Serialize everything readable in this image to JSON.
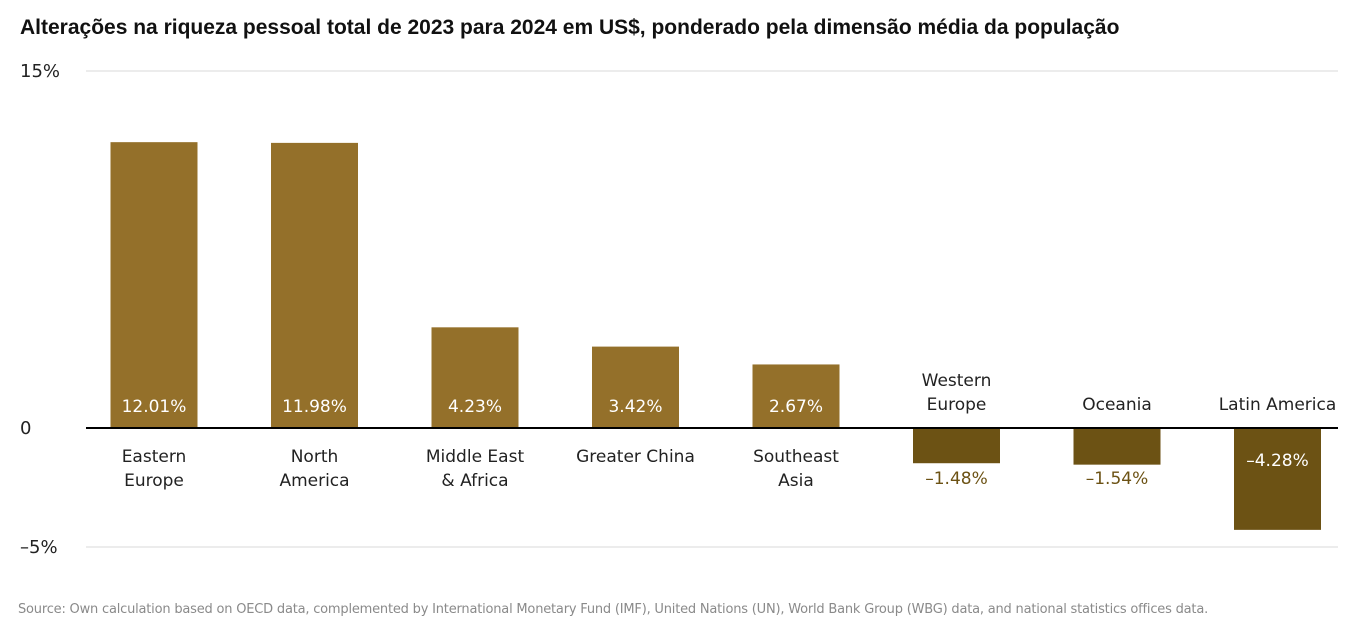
{
  "chart_data": {
    "type": "bar",
    "title": "Alterações na riqueza pessoal total de 2023 para 2024 em US$, ponderado pela dimensão média da população",
    "categories": [
      [
        "Eastern",
        "Europe"
      ],
      [
        "North",
        "America"
      ],
      [
        "Middle East",
        "& Africa"
      ],
      [
        "Greater China"
      ],
      [
        "Southeast",
        "Asia"
      ],
      [
        "Western",
        "Europe"
      ],
      [
        "Oceania"
      ],
      [
        "Latin America"
      ]
    ],
    "values": [
      12.01,
      11.98,
      4.23,
      3.42,
      2.67,
      -1.48,
      -1.54,
      -4.28
    ],
    "value_labels": [
      "12.01%",
      "11.98%",
      "4.23%",
      "3.42%",
      "2.67%",
      "–1.48%",
      "–1.54%",
      "–4.28%"
    ],
    "ylim": [
      -5,
      15
    ],
    "yticks": [
      {
        "value": 15,
        "label": "15%"
      },
      {
        "value": 0,
        "label": "0"
      },
      {
        "value": -5,
        "label": "–5%"
      }
    ],
    "xlabel": "",
    "ylabel": "",
    "legend": "none",
    "colors": {
      "positive": "#94702a",
      "negative": "#6c5214",
      "negative_label": "#6c5214",
      "positive_label": "#ffffff",
      "zero_line": "#000000",
      "gridline": "#d9d9d9"
    }
  },
  "source": "Source: Own calculation based on OECD data, complemented by International Monetary Fund (IMF), United Nations (UN), World Bank Group (WBG) data, and national statistics offices data."
}
